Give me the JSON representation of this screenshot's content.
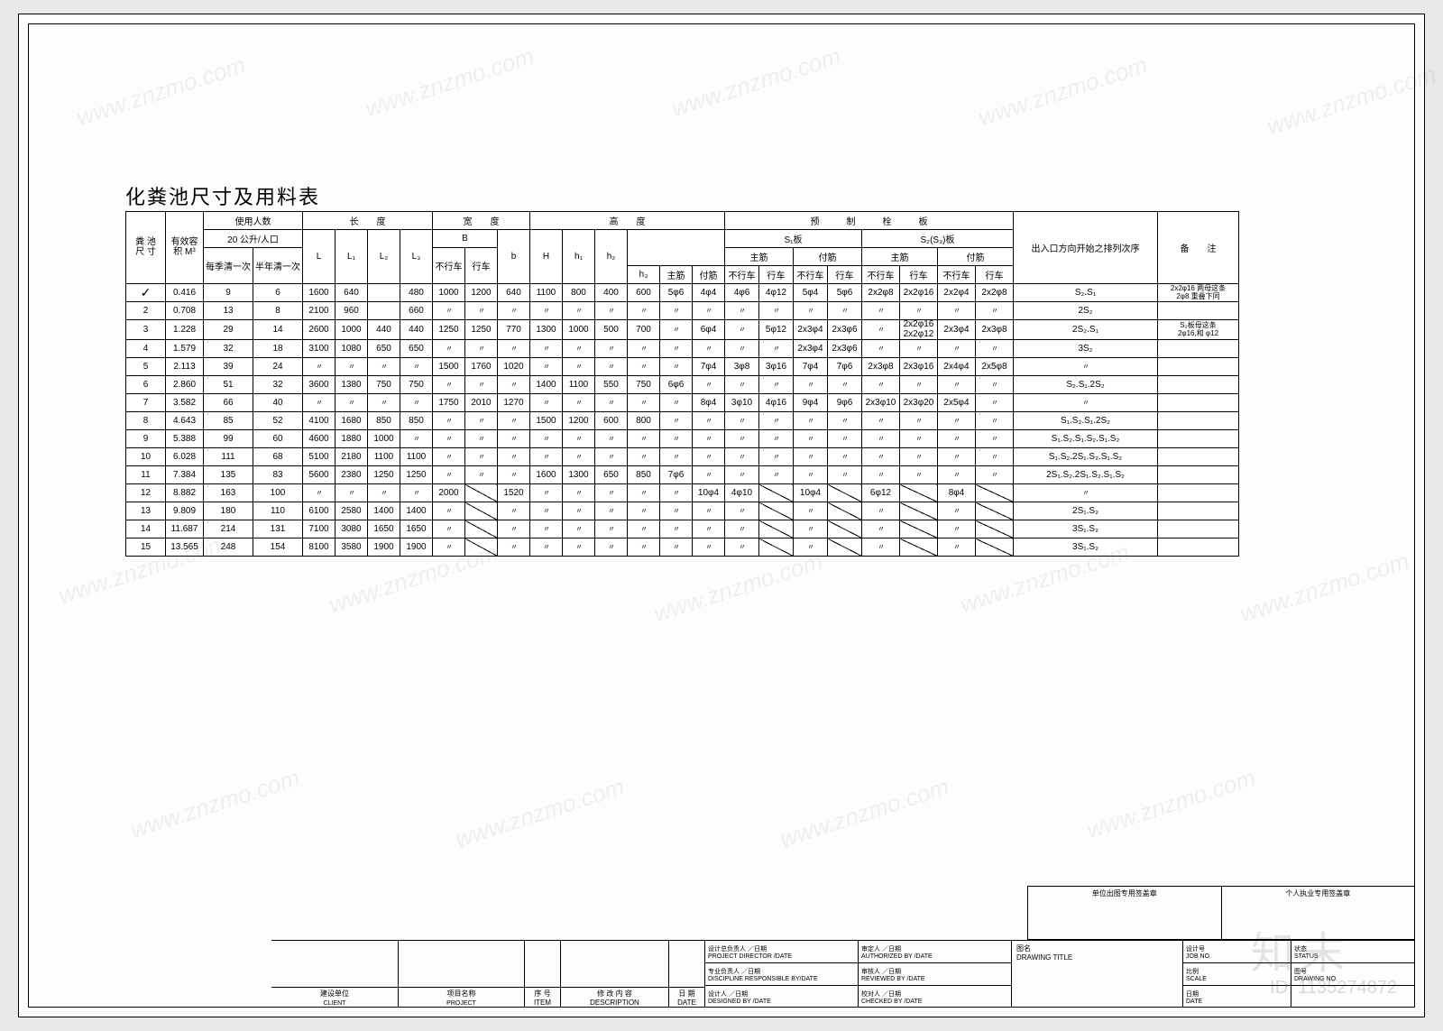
{
  "title": "化粪池尺寸及用料表",
  "header": {
    "tank_size": "粪 池\n尺 寸",
    "effective_vol": "有效容\n积 M³",
    "users": "使用人数",
    "users_sub": "20 公升/人口",
    "users_c1": "每季清一次",
    "users_c2": "半年清一次",
    "length": "长　　度",
    "L": "L",
    "L1": "L₁",
    "L2": "L₂",
    "L3": "L₃",
    "width": "宽　　度",
    "B": "B",
    "B_no": "不行车",
    "B_yes": "行车",
    "b": "b",
    "height": "高　　度",
    "H": "H",
    "h1": "h₁",
    "h2": "h₂",
    "h3": "h₃",
    "main_rebar": "主筋",
    "sec_rebar": "付筋",
    "precast": "预　　　制　　　栓　　　板",
    "S1": "S₁板",
    "S23": "S₂(S₃)板",
    "no_traffic": "不行车",
    "traffic": "行车",
    "sequence": "出入口方向开始之排列次序",
    "remark": "备　　注"
  },
  "ditto": "〃",
  "rows": [
    {
      "n": "✓",
      "vol": "0.416",
      "u1": "9",
      "u2": "6",
      "L": "1600",
      "L1": "640",
      "L2": "",
      "L3": "480",
      "Bn": "1000",
      "By": "1200",
      "b": "640",
      "H": "1100",
      "h1": "800",
      "h2": "400",
      "h3": "600",
      "mr": "5φ6",
      "sr": "4φ4",
      "s1mn": "4φ6",
      "s1my": "4φ12",
      "s1sn": "5φ4",
      "s1sy": "5φ6",
      "s2mn": "2x2φ8",
      "s2my": "2x2φ16",
      "s2sn": "2x2φ4",
      "s2sy": "2x2φ8",
      "seq": "S₂.S₁",
      "rmk": "2x2φ16 两母这条\n2φ8 重叠下同"
    },
    {
      "n": "2",
      "vol": "0.708",
      "u1": "13",
      "u2": "8",
      "L": "2100",
      "L1": "960",
      "L2": "",
      "L3": "660",
      "Bn": "〃",
      "By": "〃",
      "b": "〃",
      "H": "〃",
      "h1": "〃",
      "h2": "〃",
      "h3": "〃",
      "mr": "〃",
      "sr": "〃",
      "s1mn": "〃",
      "s1my": "〃",
      "s1sn": "〃",
      "s1sy": "〃",
      "s2mn": "〃",
      "s2my": "〃",
      "s2sn": "〃",
      "s2sy": "〃",
      "seq": "2S₂",
      "rmk": ""
    },
    {
      "n": "3",
      "vol": "1.228",
      "u1": "29",
      "u2": "14",
      "L": "2600",
      "L1": "1000",
      "L2": "440",
      "L3": "440",
      "Bn": "1250",
      "By": "1250",
      "b": "770",
      "H": "1300",
      "h1": "1000",
      "h2": "500",
      "h3": "700",
      "mr": "〃",
      "sr": "6φ4",
      "s1mn": "〃",
      "s1my": "5φ12",
      "s1sn": "2x3φ4",
      "s1sy": "2x3φ6",
      "s2mn": "〃",
      "s2my": "2x2φ16\n2x2φ12",
      "s2sn": "2x3φ4",
      "s2sy": "2x3φ8",
      "seq": "2S₂.S₁",
      "rmk": "S₂板母这条\n2φ16,和 φ12"
    },
    {
      "n": "4",
      "vol": "1.579",
      "u1": "32",
      "u2": "18",
      "L": "3100",
      "L1": "1080",
      "L2": "650",
      "L3": "650",
      "Bn": "〃",
      "By": "〃",
      "b": "〃",
      "H": "〃",
      "h1": "〃",
      "h2": "〃",
      "h3": "〃",
      "mr": "〃",
      "sr": "〃",
      "s1mn": "〃",
      "s1my": "〃",
      "s1sn": "2x3φ4",
      "s1sy": "2x3φ6",
      "s2mn": "〃",
      "s2my": "〃",
      "s2sn": "〃",
      "s2sy": "〃",
      "seq": "3S₂",
      "rmk": ""
    },
    {
      "n": "5",
      "vol": "2.113",
      "u1": "39",
      "u2": "24",
      "L": "〃",
      "L1": "〃",
      "L2": "〃",
      "L3": "〃",
      "Bn": "1500",
      "By": "1760",
      "b": "1020",
      "H": "〃",
      "h1": "〃",
      "h2": "〃",
      "h3": "〃",
      "mr": "〃",
      "sr": "7φ4",
      "s1mn": "3φ8",
      "s1my": "3φ16",
      "s1sn": "7φ4",
      "s1sy": "7φ6",
      "s2mn": "2x3φ8",
      "s2my": "2x3φ16",
      "s2sn": "2x4φ4",
      "s2sy": "2x5φ8",
      "seq": "〃",
      "rmk": ""
    },
    {
      "n": "6",
      "vol": "2.860",
      "u1": "51",
      "u2": "32",
      "L": "3600",
      "L1": "1380",
      "L2": "750",
      "L3": "750",
      "Bn": "〃",
      "By": "〃",
      "b": "〃",
      "H": "1400",
      "h1": "1100",
      "h2": "550",
      "h3": "750",
      "mr": "6φ6",
      "sr": "〃",
      "s1mn": "〃",
      "s1my": "〃",
      "s1sn": "〃",
      "s1sy": "〃",
      "s2mn": "〃",
      "s2my": "〃",
      "s2sn": "〃",
      "s2sy": "〃",
      "seq": "S₂.S₁.2S₂",
      "rmk": ""
    },
    {
      "n": "7",
      "vol": "3.582",
      "u1": "66",
      "u2": "40",
      "L": "〃",
      "L1": "〃",
      "L2": "〃",
      "L3": "〃",
      "Bn": "1750",
      "By": "2010",
      "b": "1270",
      "H": "〃",
      "h1": "〃",
      "h2": "〃",
      "h3": "〃",
      "mr": "〃",
      "sr": "8φ4",
      "s1mn": "3φ10",
      "s1my": "4φ16",
      "s1sn": "9φ4",
      "s1sy": "9φ6",
      "s2mn": "2x3φ10",
      "s2my": "2x3φ20",
      "s2sn": "2x5φ4",
      "s2sy": "〃",
      "seq": "〃",
      "rmk": ""
    },
    {
      "n": "8",
      "vol": "4.643",
      "u1": "85",
      "u2": "52",
      "L": "4100",
      "L1": "1680",
      "L2": "850",
      "L3": "850",
      "Bn": "〃",
      "By": "〃",
      "b": "〃",
      "H": "1500",
      "h1": "1200",
      "h2": "600",
      "h3": "800",
      "mr": "〃",
      "sr": "〃",
      "s1mn": "〃",
      "s1my": "〃",
      "s1sn": "〃",
      "s1sy": "〃",
      "s2mn": "〃",
      "s2my": "〃",
      "s2sn": "〃",
      "s2sy": "〃",
      "seq": "S₁.S₂.S₁.2S₂",
      "rmk": ""
    },
    {
      "n": "9",
      "vol": "5.388",
      "u1": "99",
      "u2": "60",
      "L": "4600",
      "L1": "1880",
      "L2": "1000",
      "L3": "〃",
      "Bn": "〃",
      "By": "〃",
      "b": "〃",
      "H": "〃",
      "h1": "〃",
      "h2": "〃",
      "h3": "〃",
      "mr": "〃",
      "sr": "〃",
      "s1mn": "〃",
      "s1my": "〃",
      "s1sn": "〃",
      "s1sy": "〃",
      "s2mn": "〃",
      "s2my": "〃",
      "s2sn": "〃",
      "s2sy": "〃",
      "seq": "S₁.S₂.S₁.S₂.S₁.S₂",
      "rmk": ""
    },
    {
      "n": "10",
      "vol": "6.028",
      "u1": "111",
      "u2": "68",
      "L": "5100",
      "L1": "2180",
      "L2": "1100",
      "L3": "1100",
      "Bn": "〃",
      "By": "〃",
      "b": "〃",
      "H": "〃",
      "h1": "〃",
      "h2": "〃",
      "h3": "〃",
      "mr": "〃",
      "sr": "〃",
      "s1mn": "〃",
      "s1my": "〃",
      "s1sn": "〃",
      "s1sy": "〃",
      "s2mn": "〃",
      "s2my": "〃",
      "s2sn": "〃",
      "s2sy": "〃",
      "seq": "S₁.S₂.2S₁.S₂.S₁.S₂",
      "rmk": ""
    },
    {
      "n": "11",
      "vol": "7.384",
      "u1": "135",
      "u2": "83",
      "L": "5600",
      "L1": "2380",
      "L2": "1250",
      "L3": "1250",
      "Bn": "〃",
      "By": "〃",
      "b": "〃",
      "H": "1600",
      "h1": "1300",
      "h2": "650",
      "h3": "850",
      "mr": "7φ6",
      "sr": "〃",
      "s1mn": "〃",
      "s1my": "〃",
      "s1sn": "〃",
      "s1sy": "〃",
      "s2mn": "〃",
      "s2my": "〃",
      "s2sn": "〃",
      "s2sy": "〃",
      "seq": "2S₁.S₂.2S₁.S₂.S₁.S₂",
      "rmk": ""
    },
    {
      "n": "12",
      "vol": "8.882",
      "u1": "163",
      "u2": "100",
      "L": "〃",
      "L1": "〃",
      "L2": "〃",
      "L3": "〃",
      "Bn": "2000",
      "By": "/",
      "b": "1520",
      "H": "〃",
      "h1": "〃",
      "h2": "〃",
      "h3": "〃",
      "mr": "〃",
      "sr": "10φ4",
      "s1mn": "4φ10",
      "s1my": "/",
      "s1sn": "10φ4",
      "s1sy": "/",
      "s2mn": "6φ12",
      "s2my": "/",
      "s2sn": "8φ4",
      "s2sy": "/",
      "seq": "〃",
      "rmk": ""
    },
    {
      "n": "13",
      "vol": "9.809",
      "u1": "180",
      "u2": "110",
      "L": "6100",
      "L1": "2580",
      "L2": "1400",
      "L3": "1400",
      "Bn": "〃",
      "By": "/",
      "b": "〃",
      "H": "〃",
      "h1": "〃",
      "h2": "〃",
      "h3": "〃",
      "mr": "〃",
      "sr": "〃",
      "s1mn": "〃",
      "s1my": "/",
      "s1sn": "〃",
      "s1sy": "/",
      "s2mn": "〃",
      "s2my": "/",
      "s2sn": "〃",
      "s2sy": "/",
      "seq": "2S₁.S₂",
      "rmk": ""
    },
    {
      "n": "14",
      "vol": "11.687",
      "u1": "214",
      "u2": "131",
      "L": "7100",
      "L1": "3080",
      "L2": "1650",
      "L3": "1650",
      "Bn": "〃",
      "By": "/",
      "b": "〃",
      "H": "〃",
      "h1": "〃",
      "h2": "〃",
      "h3": "〃",
      "mr": "〃",
      "sr": "〃",
      "s1mn": "〃",
      "s1my": "/",
      "s1sn": "〃",
      "s1sy": "/",
      "s2mn": "〃",
      "s2my": "/",
      "s2sn": "〃",
      "s2sy": "/",
      "seq": "3S₁.S₂",
      "rmk": ""
    },
    {
      "n": "15",
      "vol": "13.565",
      "u1": "248",
      "u2": "154",
      "L": "8100",
      "L1": "3580",
      "L2": "1900",
      "L3": "1900",
      "Bn": "〃",
      "By": "/",
      "b": "〃",
      "H": "〃",
      "h1": "〃",
      "h2": "〃",
      "h3": "〃",
      "mr": "〃",
      "sr": "〃",
      "s1mn": "〃",
      "s1my": "/",
      "s1sn": "〃",
      "s1sy": "/",
      "s2mn": "〃",
      "s2my": "/",
      "s2sn": "〃",
      "s2sy": "/",
      "seq": "3S₁.S₂",
      "rmk": ""
    }
  ],
  "stamps": {
    "left": "单位出图专用签盖章",
    "right": "个人执业专用签盖章"
  },
  "titleblock": {
    "client_top": "建设单位",
    "client": "CLIENT",
    "project_top": "项目名称",
    "project": "PROJECT",
    "seq_top": "序 号\nITEM",
    "desc_top": "修 改 内 容\nDESCRIPTION",
    "date_top": "日 期\nDATE",
    "pd": "设计总负责人 ／日期\nPROJECT DIRECTOR /DATE",
    "disc": "专业负责人 ／日期\nDISCIPLINE RESPONSIBLE BY/DATE",
    "des": "设计人 ／日期\nDESIGNED BY /DATE",
    "auth": "审定人 ／日期\nAUTHORIZED BY /DATE",
    "rev": "审核人 ／日期\nREVIEWED BY /DATE",
    "chk": "校对人 ／日期\nCHECKED BY /DATE",
    "dtitle": "图名\nDRAWING TITLE",
    "job": "设计号\nJOB NO.",
    "scale": "比例\nSCALE",
    "ddate": "日期\nDATE",
    "status": "状态\nSTATUS",
    "sheet": "图号\nDRAWING NO."
  },
  "watermark": "www.znzmo.com",
  "wm_brand": "知末",
  "wm_id": "ID: 1135274872"
}
